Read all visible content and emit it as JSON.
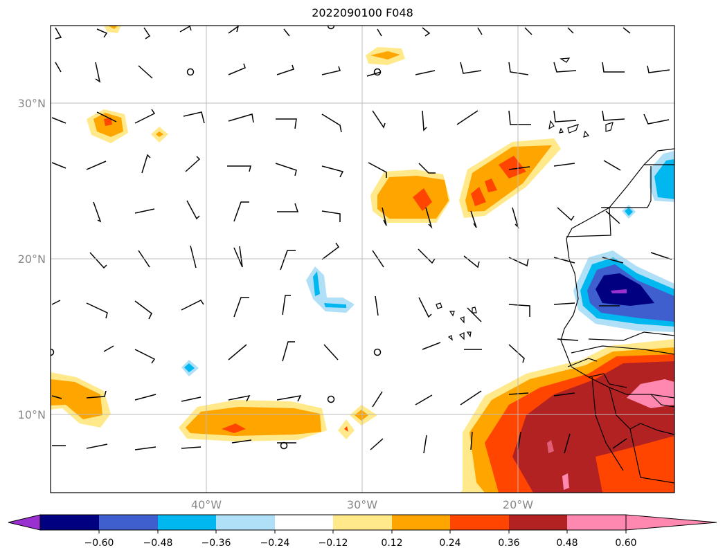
{
  "title": "2022090100 F048",
  "lat_labels": [
    "30°N",
    "20°N",
    "10°N"
  ],
  "lon_labels": [
    "40°W",
    "30°W",
    "20°W"
  ],
  "colorbar": {
    "ticks": [
      "−0.60",
      "−0.48",
      "−0.36",
      "−0.24",
      "−0.12",
      "0.12",
      "0.24",
      "0.36",
      "0.48",
      "0.60"
    ],
    "colors": {
      "under": "#9b30d0",
      "b1": "#000080",
      "b2": "#3f5fcf",
      "b3": "#00b7f0",
      "b4": "#b0e0f8",
      "b5": "#ffffff",
      "b6": "#ffe98a",
      "b7": "#ffa500",
      "b8": "#ff4500",
      "b9": "#b22222",
      "over": "#ff88b0"
    }
  }
}
